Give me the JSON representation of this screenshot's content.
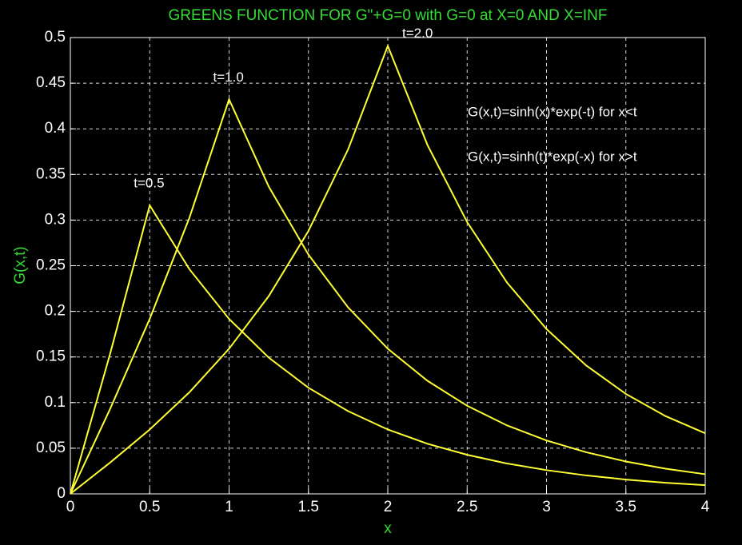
{
  "chart_data": {
    "type": "line",
    "title": "GREENS FUNCTION FOR G\"+G=0 with G=0 at X=0 AND X=INF",
    "x_label": "x",
    "y_label": "G(x,t)",
    "annotations": [
      "G(x,t)=sinh(x)*exp(-t) for x<t",
      "G(x,t)=sinh(t)*exp(-x) for x>t"
    ],
    "x": [
      0,
      0.25,
      0.5,
      0.75,
      1,
      1.25,
      1.5,
      1.75,
      2,
      2.25,
      2.5,
      2.75,
      3,
      3.25,
      3.5,
      3.75,
      4
    ],
    "series": [
      {
        "name": "t=0.5",
        "color": "#ffff33",
        "values": [
          0,
          0.1532,
          0.3161,
          0.2462,
          0.1917,
          0.1493,
          0.1163,
          0.0906,
          0.0705,
          0.0549,
          0.0428,
          0.0333,
          0.026,
          0.0202,
          0.0157,
          0.0122,
          0.0095
        ]
      },
      {
        "name": "t=1.0",
        "color": "#ffff33",
        "values": [
          0,
          0.0929,
          0.1917,
          0.3025,
          0.4323,
          0.3367,
          0.2622,
          0.2043,
          0.159,
          0.1239,
          0.0965,
          0.0751,
          0.0585,
          0.0456,
          0.0355,
          0.0276,
          0.0215
        ]
      },
      {
        "name": "t=2.0",
        "color": "#ffff33",
        "values": [
          0,
          0.0342,
          0.0705,
          0.1113,
          0.159,
          0.2167,
          0.2881,
          0.3775,
          0.4908,
          0.3823,
          0.2978,
          0.2318,
          0.1806,
          0.1407,
          0.1095,
          0.0852,
          0.0664
        ]
      }
    ],
    "xlim": [
      0,
      4
    ],
    "xticks": [
      0,
      0.5,
      1,
      1.5,
      2,
      2.5,
      3,
      3.5,
      4
    ],
    "ylim": [
      0,
      0.5
    ],
    "yticks": [
      0,
      0.05,
      0.1,
      0.15,
      0.2,
      0.25,
      0.3,
      0.35,
      0.4,
      0.45,
      0.5
    ],
    "grid": true
  }
}
